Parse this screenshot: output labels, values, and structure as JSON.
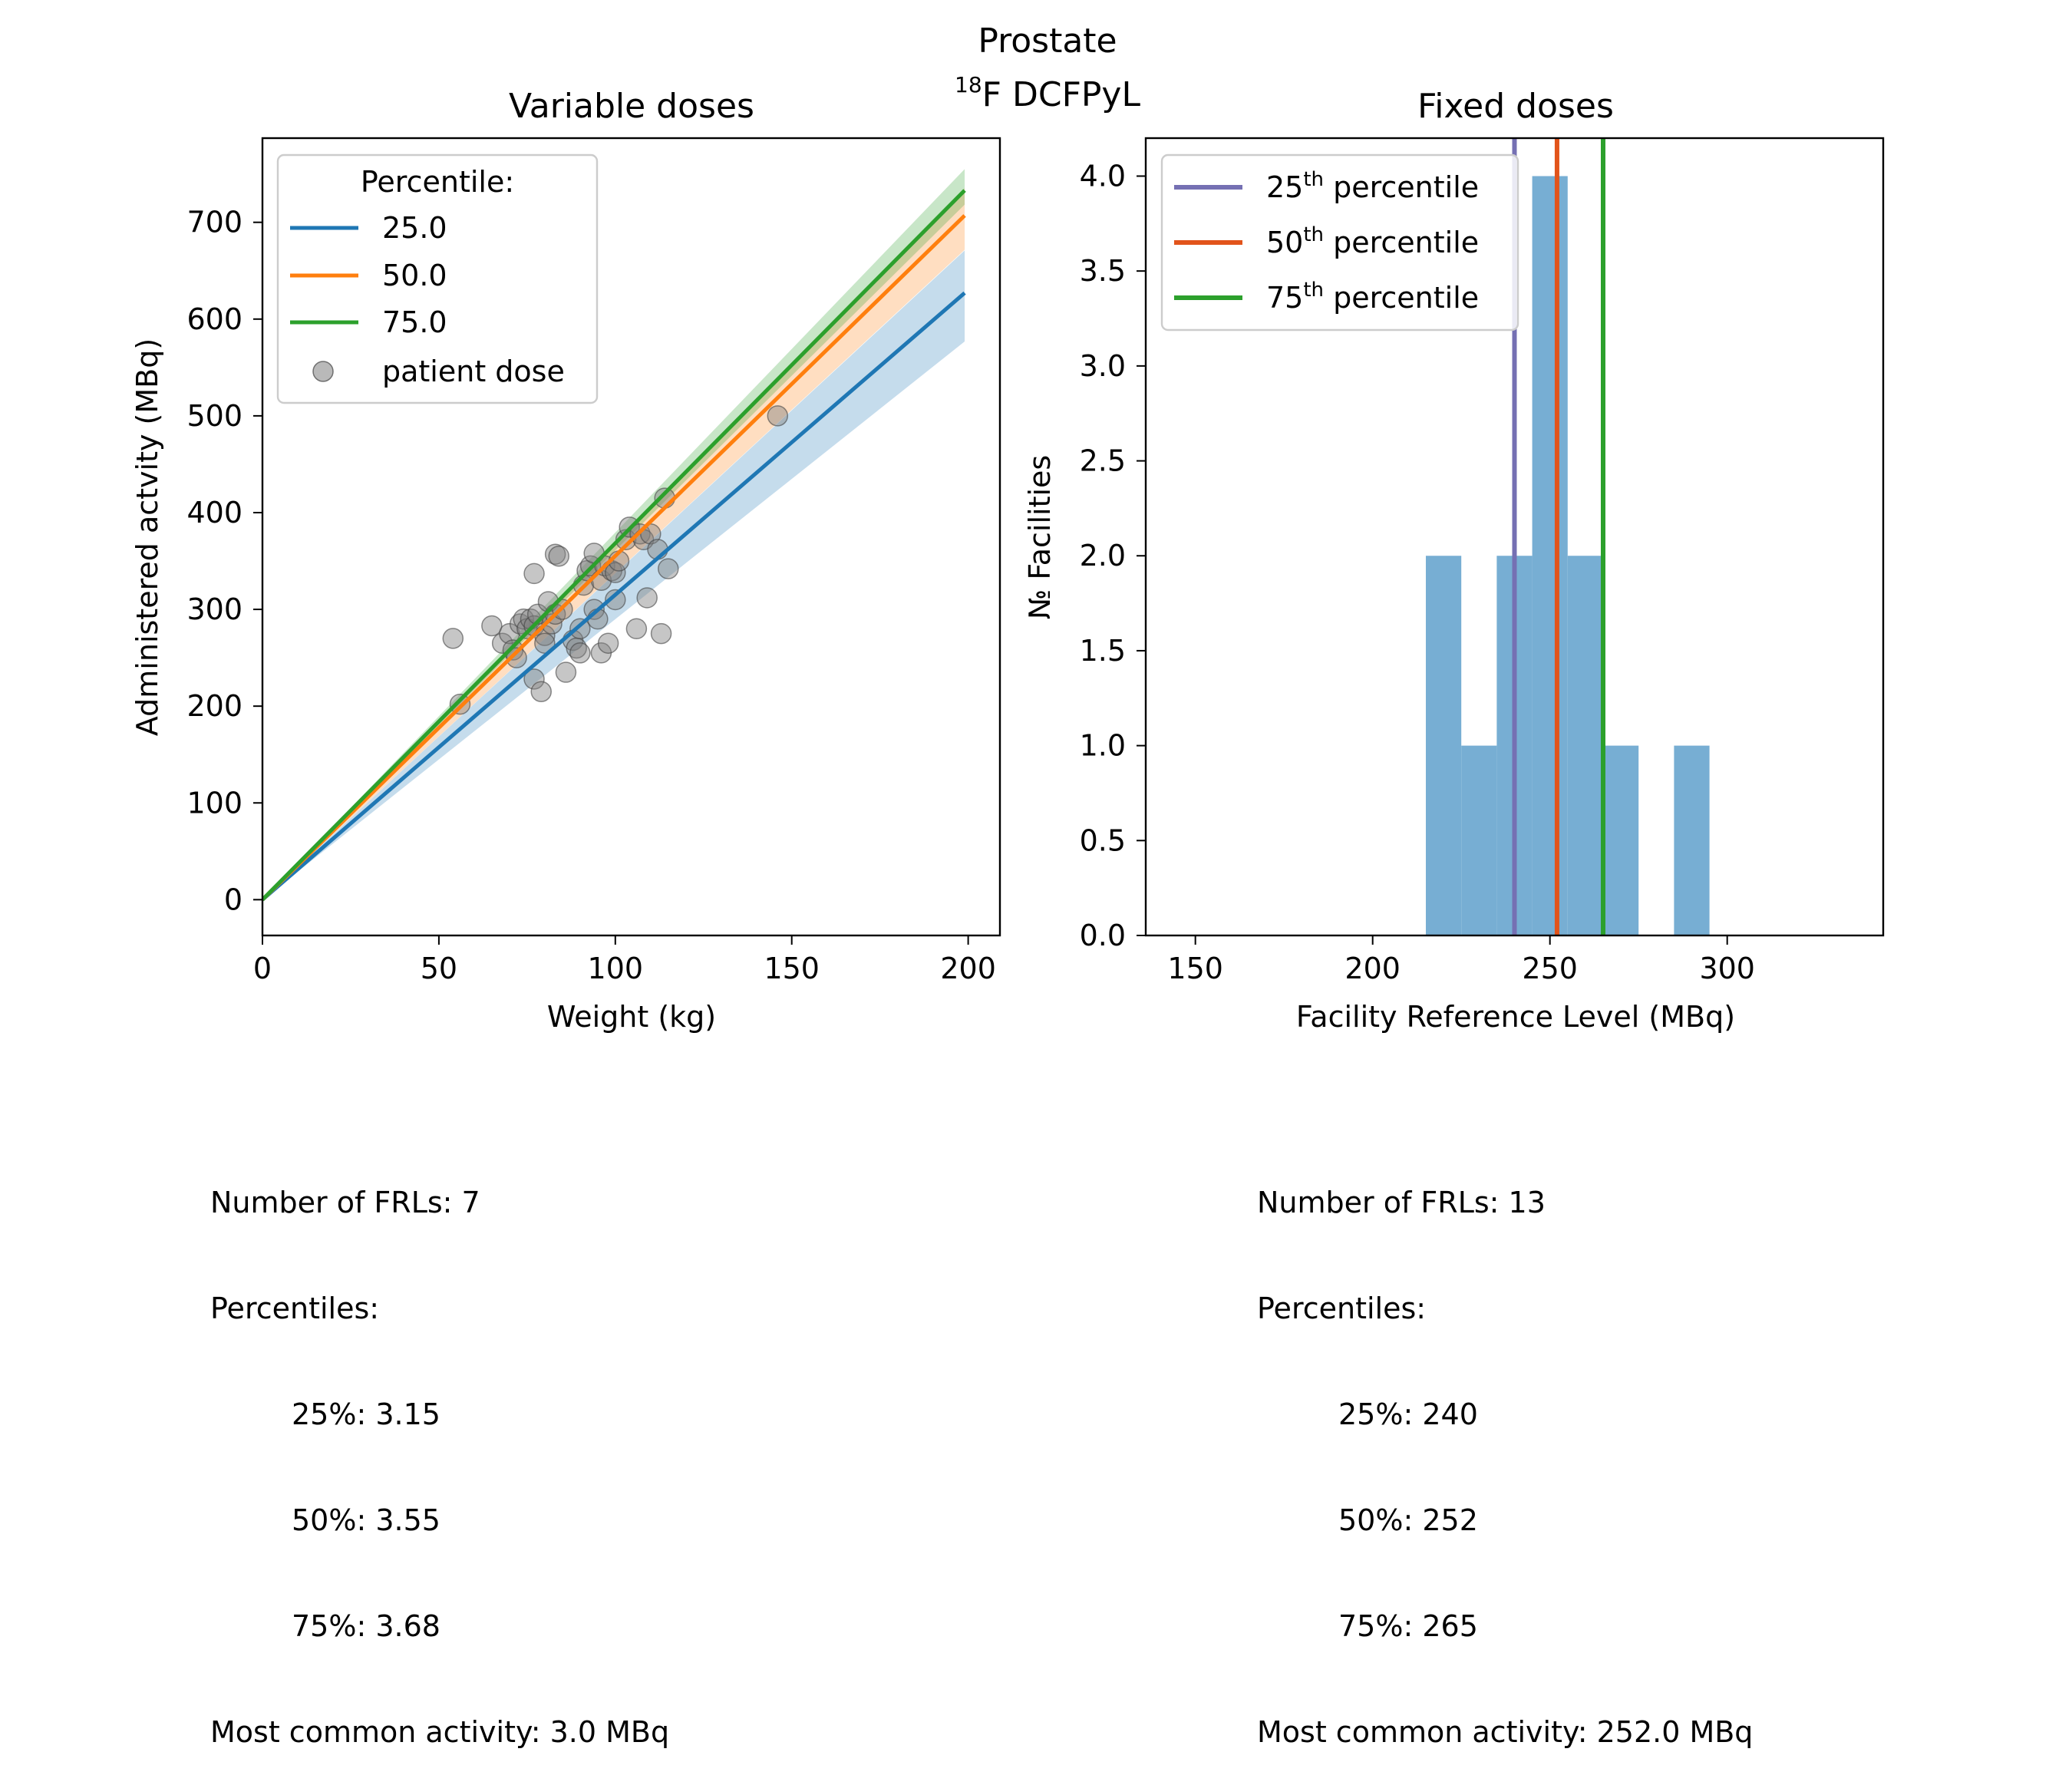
{
  "suptitle": {
    "line1": "Prostate",
    "iso_mass": "18",
    "line2_rest": "F DCFPyL"
  },
  "left": {
    "title": "Variable doses",
    "xlabel": "Weight (kg)",
    "ylabel": "Administered actvity (MBq)",
    "legend_title": "Percentile:",
    "scatter_label": "patient dose",
    "stats": {
      "count": "Number of FRLs: 7",
      "percentiles_header": "Percentiles:",
      "p25": "25%: 3.15",
      "p50": "50%: 3.55",
      "p75": "75%: 3.68",
      "mode": "Most common activity: 3.0 MBq"
    }
  },
  "right": {
    "title": "Fixed doses",
    "xlabel": "Facility Reference Level (MBq)",
    "ylabel": "№ Facilities",
    "legend": [
      {
        "pre": "25",
        "sup": "th",
        "post": " percentile"
      },
      {
        "pre": "50",
        "sup": "th",
        "post": " percentile"
      },
      {
        "pre": "75",
        "sup": "th",
        "post": " percentile"
      }
    ],
    "stats": {
      "count": "Number of FRLs: 13",
      "percentiles_header": "Percentiles:",
      "p25": "25%: 240",
      "p50": "50%: 252",
      "p75": "75%: 265",
      "mode": "Most common activity: 252.0 MBq"
    }
  },
  "chart_data": [
    {
      "type": "line",
      "title": "Variable doses",
      "xlabel": "Weight (kg)",
      "ylabel": "Administered actvity (MBq)",
      "xlim": [
        0,
        209
      ],
      "ylim": [
        -37,
        787
      ],
      "xticks": [
        0,
        50,
        100,
        150,
        200
      ],
      "yticks": [
        0,
        100,
        200,
        300,
        400,
        500,
        600,
        700
      ],
      "legend_position": "upper-left",
      "series": [
        {
          "name": "25.0",
          "color": "#1f77b4",
          "x": [
            0,
            199
          ],
          "y": [
            0,
            627
          ],
          "band": [
            0.92,
            1.07
          ]
        },
        {
          "name": "50.0",
          "color": "#ff7f0e",
          "x": [
            0,
            199
          ],
          "y": [
            0,
            707
          ],
          "band": [
            0.95,
            1.04
          ]
        },
        {
          "name": "75.0",
          "color": "#2ca02c",
          "x": [
            0,
            199
          ],
          "y": [
            0,
            733
          ],
          "band": [
            0.98,
            1.03
          ]
        }
      ],
      "scatter": {
        "name": "patient dose",
        "color": "#808080",
        "points": [
          [
            54,
            270
          ],
          [
            56,
            202
          ],
          [
            65,
            283
          ],
          [
            68,
            265
          ],
          [
            70,
            275
          ],
          [
            71,
            258
          ],
          [
            72,
            250
          ],
          [
            73,
            285
          ],
          [
            74,
            290
          ],
          [
            75,
            280
          ],
          [
            76,
            290
          ],
          [
            77,
            283
          ],
          [
            78,
            295
          ],
          [
            77,
            228
          ],
          [
            77,
            337
          ],
          [
            79,
            215
          ],
          [
            80,
            273
          ],
          [
            80,
            265
          ],
          [
            81,
            308
          ],
          [
            82,
            285
          ],
          [
            83,
            295
          ],
          [
            83,
            357
          ],
          [
            84,
            355
          ],
          [
            85,
            300
          ],
          [
            86,
            235
          ],
          [
            88,
            268
          ],
          [
            89,
            260
          ],
          [
            90,
            255
          ],
          [
            90,
            280
          ],
          [
            91,
            325
          ],
          [
            92,
            340
          ],
          [
            93,
            345
          ],
          [
            94,
            300
          ],
          [
            94,
            358
          ],
          [
            95,
            290
          ],
          [
            96,
            255
          ],
          [
            96,
            330
          ],
          [
            97,
            345
          ],
          [
            98,
            265
          ],
          [
            99,
            340
          ],
          [
            100,
            338
          ],
          [
            100,
            310
          ],
          [
            101,
            350
          ],
          [
            103,
            372
          ],
          [
            104,
            385
          ],
          [
            106,
            280
          ],
          [
            107,
            378
          ],
          [
            108,
            372
          ],
          [
            109,
            312
          ],
          [
            110,
            378
          ],
          [
            112,
            362
          ],
          [
            113,
            275
          ],
          [
            114,
            415
          ],
          [
            115,
            342
          ],
          [
            146,
            500
          ]
        ]
      }
    },
    {
      "type": "bar",
      "title": "Fixed doses",
      "xlabel": "Facility Reference Level (MBq)",
      "ylabel": "№ Facilities",
      "xlim": [
        136,
        344
      ],
      "ylim": [
        0,
        4.2
      ],
      "xticks": [
        150,
        200,
        250,
        300
      ],
      "yticks": [
        0.0,
        0.5,
        1.0,
        1.5,
        2.0,
        2.5,
        3.0,
        3.5,
        4.0
      ],
      "legend_position": "upper-left",
      "bin_edges": [
        215,
        225,
        235,
        245,
        255,
        265,
        275,
        285,
        295
      ],
      "values": [
        2,
        1,
        2,
        4,
        2,
        1,
        0,
        1
      ],
      "bar_color": "#77aed3",
      "percentile_lines": [
        {
          "label": "25th percentile",
          "value": 240,
          "color": "#7570b3"
        },
        {
          "label": "50th percentile",
          "value": 252,
          "color": "#e2541b"
        },
        {
          "label": "75th percentile",
          "value": 265,
          "color": "#2ca02c"
        }
      ]
    }
  ]
}
